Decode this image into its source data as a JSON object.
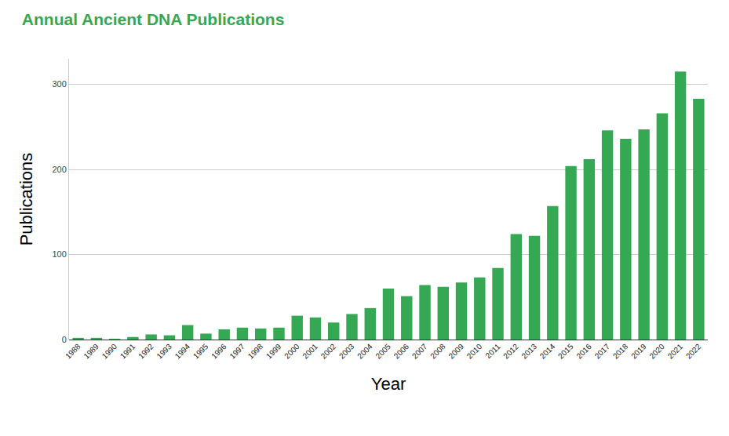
{
  "chart_data": {
    "type": "bar",
    "title": "Annual Ancient DNA Publications",
    "x_label": "Year",
    "y_label": "Publications",
    "categories": [
      "1988",
      "1989",
      "1990",
      "1991",
      "1992",
      "1993",
      "1994",
      "1995",
      "1996",
      "1997",
      "1998",
      "1999",
      "2000",
      "2001",
      "2002",
      "2003",
      "2004",
      "2005",
      "2006",
      "2007",
      "2008",
      "2009",
      "2010",
      "2011",
      "2012",
      "2013",
      "2014",
      "2015",
      "2016",
      "2017",
      "2018",
      "2019",
      "2020",
      "2021",
      "2022"
    ],
    "values": [
      2,
      2,
      1,
      3,
      6,
      5,
      17,
      7,
      12,
      14,
      13,
      14,
      28,
      26,
      20,
      30,
      37,
      60,
      51,
      64,
      62,
      67,
      73,
      84,
      124,
      122,
      157,
      204,
      212,
      246,
      236,
      247,
      266,
      315,
      283
    ],
    "color": "#34a853",
    "ylim": [
      0,
      330
    ],
    "yticks": [
      0,
      100,
      200,
      300
    ],
    "grid": true
  }
}
